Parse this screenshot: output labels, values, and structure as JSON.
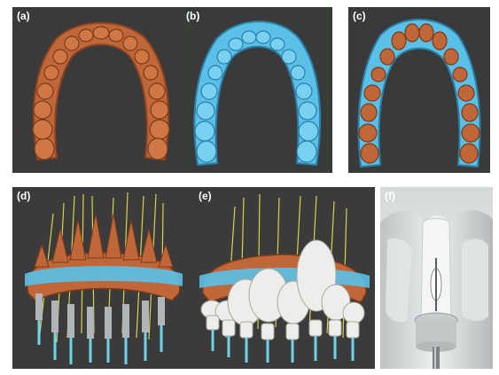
{
  "panels": {
    "a": {
      "label": "(a)"
    },
    "b": {
      "label": "(b)"
    },
    "c": {
      "label": "(c)"
    },
    "d": {
      "label": "(d)"
    },
    "e": {
      "label": "(e)"
    },
    "f": {
      "label": "(f)"
    }
  },
  "colors": {
    "background": "#3b3b3b",
    "tooth_copper": "#c0673a",
    "gingiva_blue": "#5bc0e8",
    "guide_white": "#ededeb",
    "implant_sleeve": "#b0b6b8",
    "guide_pin_yellow": "#d8d050",
    "photo_bg": "#e9eaea"
  },
  "icons": {
    "a": "copper-tooth-arch-icon",
    "b": "blue-scan-arch-icon",
    "c": "superimposed-arch-icon",
    "d": "implant-plan-icon",
    "e": "surgical-guide-icon",
    "f": "guide-photo-icon"
  }
}
